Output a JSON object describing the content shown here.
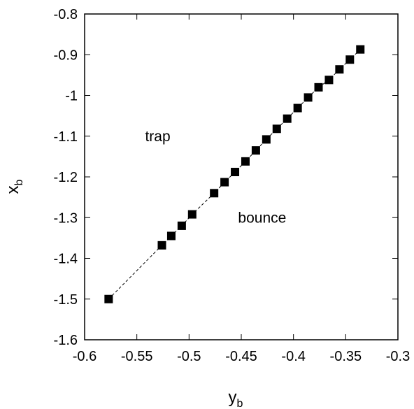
{
  "chart_data": {
    "type": "scatter",
    "xlabel": "y",
    "xlabel_sub": "b",
    "ylabel": "x",
    "ylabel_sub": "b",
    "xlim": [
      -0.6,
      -0.3
    ],
    "ylim": [
      -1.6,
      -0.8
    ],
    "x_ticks": [
      -0.6,
      -0.55,
      -0.5,
      -0.45,
      -0.4,
      -0.35,
      -0.3
    ],
    "x_tick_labels": [
      "-0.6",
      "-0.55",
      "-0.5",
      "-0.45",
      "-0.4",
      "-0.35",
      "-0.3"
    ],
    "y_ticks": [
      -1.6,
      -1.5,
      -1.4,
      -1.3,
      -1.2,
      -1.1,
      -1.0,
      -0.9,
      -0.8
    ],
    "y_tick_labels": [
      "-1.6",
      "-1.5",
      "-1.4",
      "-1.3",
      "-1.2",
      "-1.1",
      "-1",
      "-0.9",
      "-0.8"
    ],
    "grid": false,
    "series": [
      {
        "marker": "square",
        "color": "#000000",
        "connect_line": "dashed",
        "points": [
          {
            "x": -0.577,
            "y": -1.5
          },
          {
            "x": -0.526,
            "y": -1.368
          },
          {
            "x": -0.517,
            "y": -1.345
          },
          {
            "x": -0.507,
            "y": -1.32
          },
          {
            "x": -0.497,
            "y": -1.292
          },
          {
            "x": -0.476,
            "y": -1.24
          },
          {
            "x": -0.466,
            "y": -1.213
          },
          {
            "x": -0.456,
            "y": -1.188
          },
          {
            "x": -0.446,
            "y": -1.162
          },
          {
            "x": -0.436,
            "y": -1.135
          },
          {
            "x": -0.426,
            "y": -1.108
          },
          {
            "x": -0.416,
            "y": -1.082
          },
          {
            "x": -0.406,
            "y": -1.057
          },
          {
            "x": -0.396,
            "y": -1.031
          },
          {
            "x": -0.386,
            "y": -1.005
          },
          {
            "x": -0.376,
            "y": -0.98
          },
          {
            "x": -0.366,
            "y": -0.962
          },
          {
            "x": -0.356,
            "y": -0.936
          },
          {
            "x": -0.346,
            "y": -0.912
          },
          {
            "x": -0.336,
            "y": -0.887
          }
        ]
      }
    ],
    "annotations": [
      {
        "text": "trap",
        "x": -0.53,
        "y": -1.1
      },
      {
        "text": "bounce",
        "x": -0.43,
        "y": -1.3
      }
    ]
  }
}
